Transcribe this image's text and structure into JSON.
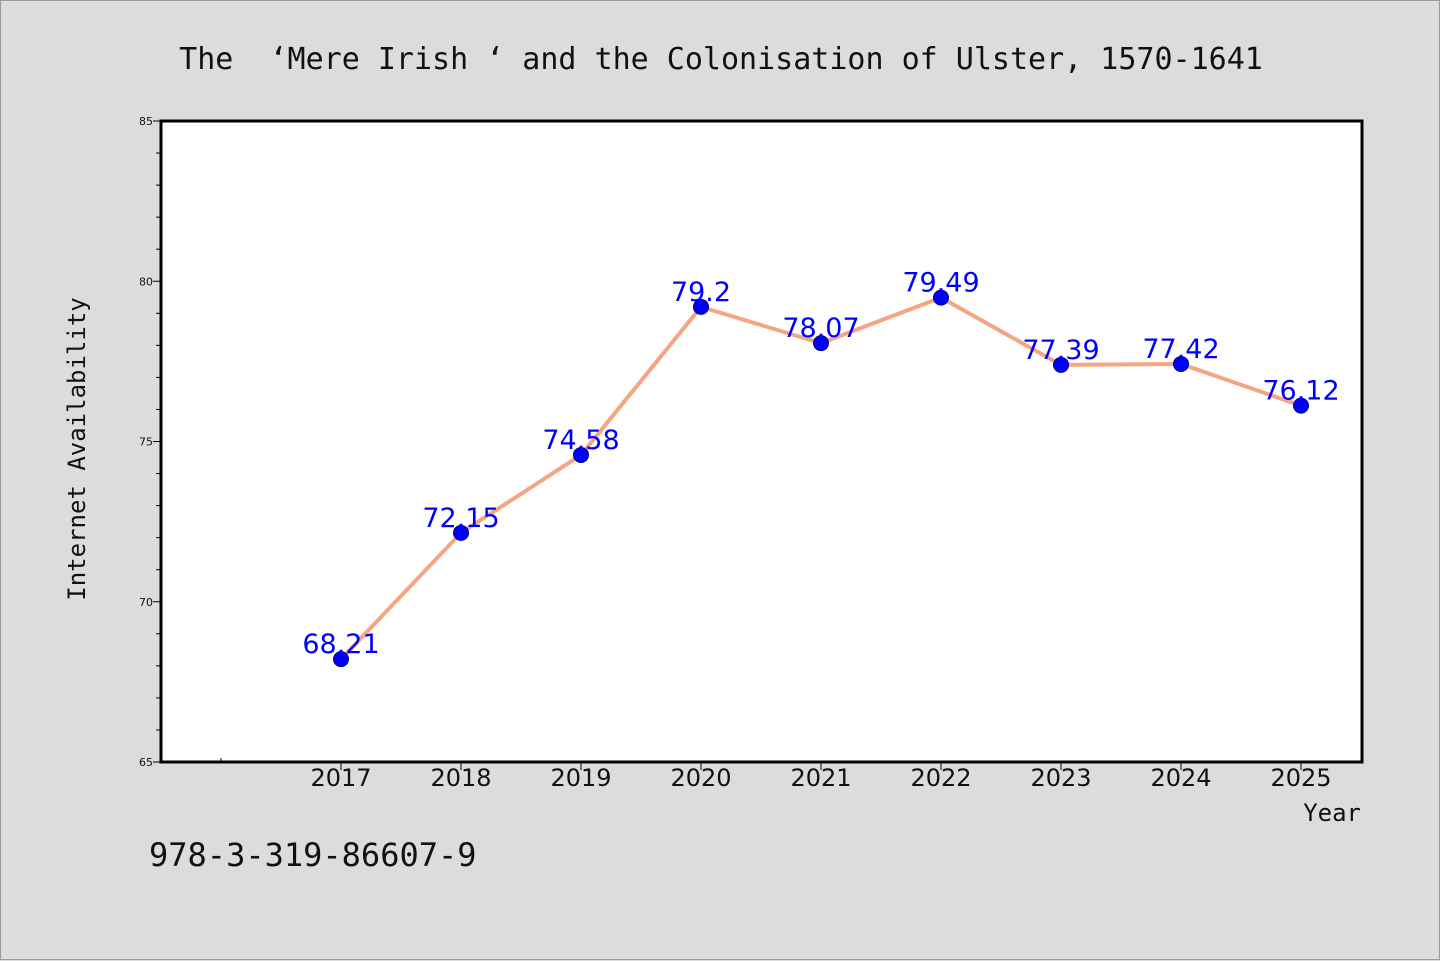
{
  "page": {
    "title": "The  ‘Mere Irish ‘ and the Colonisation of Ulster, 1570-1641",
    "isbn": "978-3-319-86607-9"
  },
  "colors": {
    "background": "#dcdcdc",
    "plot_background": "#ffffff",
    "line": "#f4a582",
    "marker": "#0000ff",
    "data_label": "#0000ff"
  },
  "chart_data": {
    "type": "line",
    "title": "The  ‘Mere Irish ‘ and the Colonisation of Ulster, 1570-1641",
    "xlabel": "Year",
    "ylabel": "Internet Availability",
    "categories": [
      "2017",
      "2018",
      "2019",
      "2020",
      "2021",
      "2022",
      "2023",
      "2024",
      "2025"
    ],
    "values": [
      68.21,
      72.15,
      74.58,
      79.2,
      78.07,
      79.49,
      77.39,
      77.42,
      76.12
    ],
    "data_labels": [
      "68.21",
      "72.15",
      "74.58",
      "79.2",
      "78.07",
      "79.49",
      "77.39",
      "77.42",
      "76.12"
    ],
    "ylim": [
      65,
      85
    ],
    "yticks": [
      "65",
      "70",
      "75",
      "80",
      "85"
    ],
    "grid": false,
    "legend": "none"
  }
}
